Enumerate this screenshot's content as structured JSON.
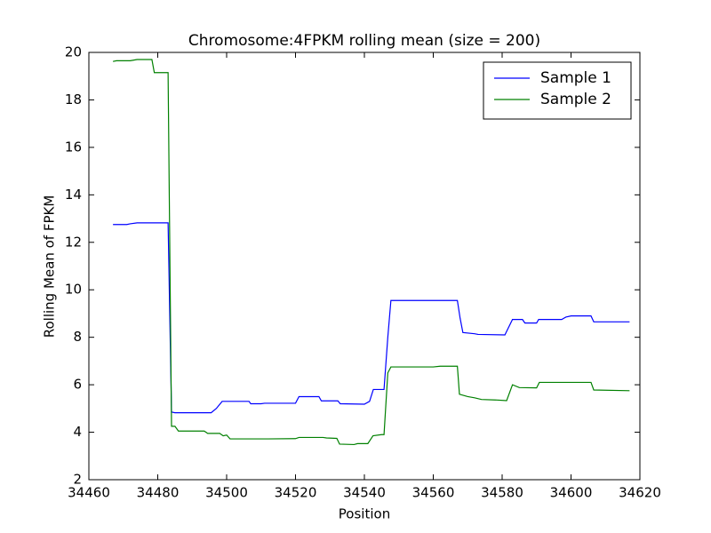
{
  "chart_data": {
    "type": "line",
    "title": "Chromosome:4FPKM rolling mean (size = 200)",
    "x_label": "Position",
    "y_label": "Rolling Mean of FPKM",
    "xlim": [
      34460,
      34620
    ],
    "xticks": [
      34460,
      34480,
      34500,
      34520,
      34540,
      34560,
      34580,
      34600,
      34620
    ],
    "ylim": [
      2,
      20
    ],
    "yticks": [
      2,
      4,
      6,
      8,
      10,
      12,
      14,
      16,
      18,
      20
    ],
    "legend": "upper right",
    "series": [
      {
        "name": "Sample 1",
        "color": "#0000ff",
        "x": [
          34467,
          34471,
          34472,
          34474,
          34483,
          34484,
          34485,
          34495.5,
          34497,
          34498.7,
          34506.5,
          34507,
          34510,
          34511,
          34520,
          34521,
          34526.8,
          34527.5,
          34532.3,
          34533,
          34540,
          34541.5,
          34542.6,
          34545.7,
          34546.8,
          34547.7,
          34567,
          34567.8,
          34568.6,
          34572,
          34573,
          34580.8,
          34583,
          34585.9,
          34586.6,
          34590,
          34590.6,
          34597.3,
          34598.5,
          34600,
          34605.8,
          34606.6,
          34617
        ],
        "values": [
          12.75,
          12.75,
          12.78,
          12.82,
          12.82,
          4.85,
          4.82,
          4.82,
          5.0,
          5.3,
          5.3,
          5.2,
          5.2,
          5.22,
          5.22,
          5.5,
          5.5,
          5.32,
          5.32,
          5.2,
          5.18,
          5.3,
          5.8,
          5.8,
          8.0,
          9.55,
          9.55,
          8.8,
          8.2,
          8.15,
          8.12,
          8.1,
          8.75,
          8.75,
          8.6,
          8.6,
          8.75,
          8.75,
          8.85,
          8.9,
          8.9,
          8.65,
          8.65
        ]
      },
      {
        "name": "Sample 2",
        "color": "#008000",
        "x": [
          34467,
          34468,
          34472,
          34474,
          34478.3,
          34479,
          34483,
          34484,
          34485,
          34486,
          34493.5,
          34494.5,
          34498,
          34499,
          34500,
          34501,
          34512,
          34520,
          34521,
          34528,
          34529,
          34532,
          34532.8,
          34537,
          34538,
          34541,
          34542.5,
          34545,
          34545.7,
          34546.8,
          34547.7,
          34560,
          34562,
          34567,
          34567.6,
          34570,
          34572,
          34574,
          34578,
          34581.3,
          34583,
          34585,
          34590,
          34590.8,
          34605.8,
          34606.6,
          34617
        ],
        "values": [
          19.62,
          19.65,
          19.65,
          19.7,
          19.7,
          19.15,
          19.15,
          4.25,
          4.25,
          4.05,
          4.05,
          3.95,
          3.95,
          3.85,
          3.88,
          3.72,
          3.72,
          3.73,
          3.78,
          3.78,
          3.76,
          3.74,
          3.5,
          3.48,
          3.52,
          3.52,
          3.85,
          3.9,
          3.9,
          6.5,
          6.75,
          6.75,
          6.78,
          6.78,
          5.6,
          5.5,
          5.45,
          5.38,
          5.36,
          5.33,
          6.0,
          5.88,
          5.87,
          6.1,
          6.1,
          5.78,
          5.75
        ]
      }
    ]
  }
}
